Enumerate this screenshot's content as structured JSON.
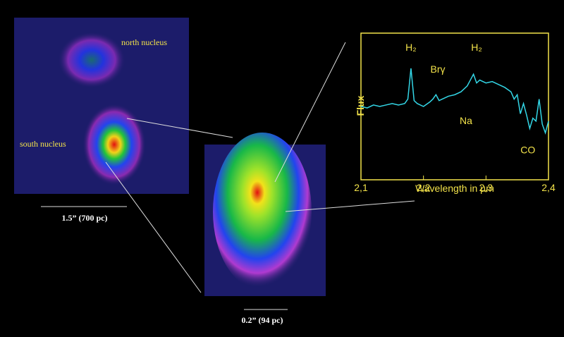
{
  "labels": {
    "north": "north nucleus",
    "south": "south nucleus",
    "scale_left": "1.5” (700 pc)",
    "scale_mid": "0.2” (94 pc)"
  },
  "chart_data": {
    "type": "line",
    "ylabel": "Flux",
    "xlabel": "Wavelength in µm",
    "xlim": [
      2.1,
      2.4
    ],
    "ylim": [
      0,
      1
    ],
    "xticks": [
      {
        "value": 2.1,
        "label": "2,1"
      },
      {
        "value": 2.2,
        "label": "2,2"
      },
      {
        "value": 2.3,
        "label": "2,3"
      },
      {
        "value": 2.4,
        "label": "2,4"
      }
    ],
    "color": "#33d6e6",
    "x": [
      2.1,
      2.11,
      2.12,
      2.13,
      2.14,
      2.15,
      2.16,
      2.17,
      2.175,
      2.18,
      2.185,
      2.19,
      2.2,
      2.21,
      2.215,
      2.22,
      2.225,
      2.23,
      2.24,
      2.25,
      2.26,
      2.27,
      2.275,
      2.28,
      2.285,
      2.29,
      2.3,
      2.31,
      2.32,
      2.33,
      2.34,
      2.345,
      2.35,
      2.355,
      2.36,
      2.365,
      2.37,
      2.375,
      2.38,
      2.385,
      2.39,
      2.395,
      2.4
    ],
    "values": [
      0.5,
      0.49,
      0.51,
      0.5,
      0.51,
      0.52,
      0.51,
      0.52,
      0.55,
      0.76,
      0.54,
      0.52,
      0.5,
      0.53,
      0.55,
      0.58,
      0.54,
      0.55,
      0.57,
      0.58,
      0.6,
      0.64,
      0.68,
      0.72,
      0.66,
      0.68,
      0.66,
      0.67,
      0.65,
      0.63,
      0.6,
      0.55,
      0.58,
      0.45,
      0.52,
      0.44,
      0.35,
      0.42,
      0.4,
      0.55,
      0.38,
      0.32,
      0.4
    ],
    "annotations": [
      {
        "text": "H₂",
        "x": 2.18,
        "y": 0.88
      },
      {
        "text": "Brγ",
        "x": 2.223,
        "y": 0.73
      },
      {
        "text": "H₂",
        "x": 2.285,
        "y": 0.88
      },
      {
        "text": "Na",
        "x": 2.268,
        "y": 0.38
      },
      {
        "text": "CO",
        "x": 2.367,
        "y": 0.18
      }
    ]
  }
}
